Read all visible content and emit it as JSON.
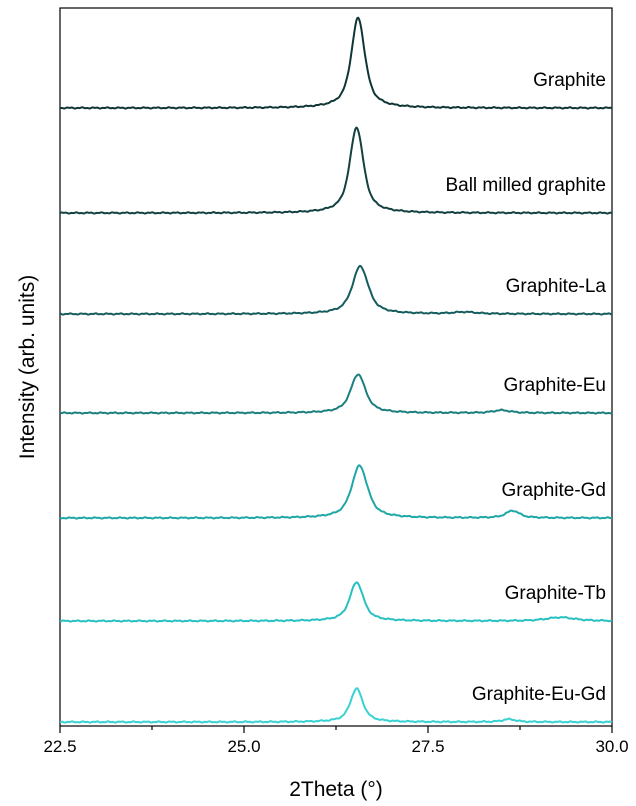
{
  "chart_data": {
    "type": "line",
    "xlabel": "2Theta (°)",
    "ylabel": "Intensity (arb. units)",
    "xlim": [
      22.5,
      30.0
    ],
    "xticks": [
      22.5,
      25.0,
      27.5,
      30.0
    ],
    "xtick_labels": [
      "22.5",
      "25.0",
      "27.5",
      "30.0"
    ],
    "stacked_offset": true,
    "grid": false,
    "legend": "inline labels right of each trace",
    "series": [
      {
        "name": "Graphite",
        "color": "#0f3535",
        "peaks": [
          {
            "x": 26.55,
            "height": 1.0,
            "width": 0.12
          }
        ]
      },
      {
        "name": "Ball milled graphite",
        "color": "#134040",
        "peaks": [
          {
            "x": 26.53,
            "height": 0.95,
            "width": 0.12
          }
        ]
      },
      {
        "name": "Graphite-La",
        "color": "#155c5c",
        "peaks": [
          {
            "x": 26.58,
            "height": 0.53,
            "width": 0.14
          },
          {
            "x": 28.0,
            "height": 0.02,
            "width": 0.2
          }
        ]
      },
      {
        "name": "Graphite-Eu",
        "color": "#1a7f7f",
        "peaks": [
          {
            "x": 26.55,
            "height": 0.43,
            "width": 0.13
          },
          {
            "x": 28.5,
            "height": 0.03,
            "width": 0.15
          }
        ]
      },
      {
        "name": "Graphite-Gd",
        "color": "#1fa6a6",
        "peaks": [
          {
            "x": 26.57,
            "height": 0.58,
            "width": 0.14
          },
          {
            "x": 28.65,
            "height": 0.08,
            "width": 0.12
          }
        ]
      },
      {
        "name": "Graphite-Tb",
        "color": "#28c0c0",
        "peaks": [
          {
            "x": 26.53,
            "height": 0.43,
            "width": 0.12
          },
          {
            "x": 29.3,
            "height": 0.04,
            "width": 0.25
          }
        ]
      },
      {
        "name": "Graphite-Eu-Gd",
        "color": "#38d2d2",
        "peaks": [
          {
            "x": 26.53,
            "height": 0.37,
            "width": 0.11
          },
          {
            "x": 28.6,
            "height": 0.03,
            "width": 0.12
          }
        ]
      }
    ]
  }
}
